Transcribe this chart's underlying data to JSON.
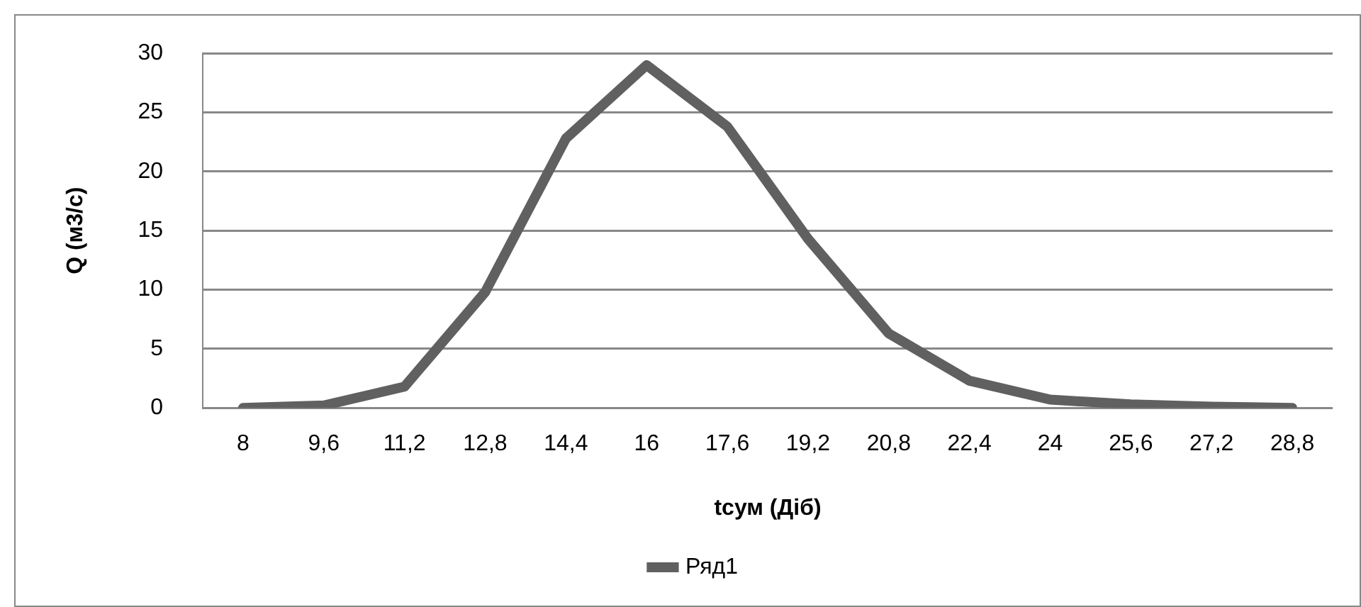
{
  "chart_data": {
    "type": "line",
    "xlabel": "tсум (Діб)",
    "ylabel": "Q (м3/с)",
    "categories": [
      "8",
      "9,6",
      "11,2",
      "12,8",
      "14,4",
      "16",
      "17,6",
      "19,2",
      "20,8",
      "22,4",
      "24",
      "25,6",
      "27,2",
      "28,8"
    ],
    "series": [
      {
        "name": "Ряд1",
        "color": "#606060",
        "values": [
          0,
          0.2,
          1.8,
          9.8,
          22.8,
          29,
          23.8,
          14.3,
          6.3,
          2.3,
          0.7,
          0.3,
          0.1,
          0
        ]
      }
    ],
    "ylim": [
      0,
      30
    ],
    "yticks": [
      0,
      5,
      10,
      15,
      20,
      25,
      30
    ],
    "grid": "y",
    "legend": "bottom",
    "marker": "none",
    "line_style": "solid"
  }
}
